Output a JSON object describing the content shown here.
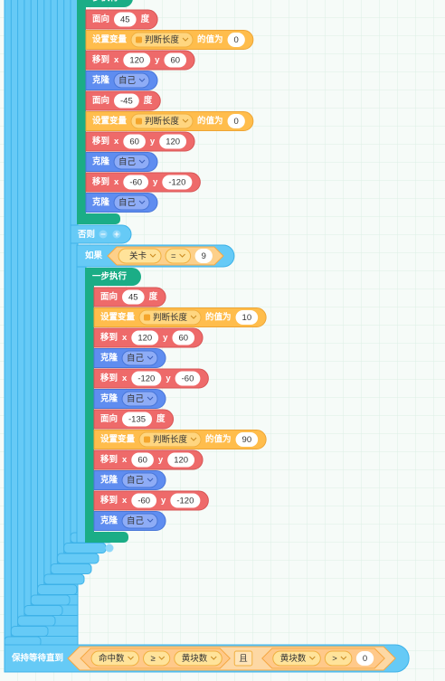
{
  "script": {
    "stack1": {
      "header": "一步执行",
      "blocks": [
        {
          "kind": "motion",
          "parts": [
            "面向",
            45,
            "度"
          ]
        },
        {
          "kind": "variable",
          "parts": [
            "设置变量",
            {
              "var": "判断长度"
            },
            "的值为",
            0
          ]
        },
        {
          "kind": "motion",
          "parts": [
            "移到",
            "x",
            120,
            "y",
            60
          ]
        },
        {
          "kind": "control",
          "parts": [
            "克隆",
            {
              "menu": "自己"
            }
          ]
        },
        {
          "kind": "motion",
          "parts": [
            "面向",
            -45,
            "度"
          ]
        },
        {
          "kind": "variable",
          "parts": [
            "设置变量",
            {
              "var": "判断长度"
            },
            "的值为",
            0
          ]
        },
        {
          "kind": "motion",
          "parts": [
            "移到",
            "x",
            60,
            "y",
            120
          ]
        },
        {
          "kind": "control",
          "parts": [
            "克隆",
            {
              "menu": "自己"
            }
          ]
        },
        {
          "kind": "motion",
          "parts": [
            "移到",
            "x",
            -60,
            "y",
            -120
          ]
        },
        {
          "kind": "control",
          "parts": [
            "克隆",
            {
              "menu": "自己"
            }
          ]
        }
      ]
    },
    "else_label": "否则",
    "if_block": {
      "label": "如果",
      "condition": {
        "left": "关卡",
        "op": "=",
        "right": 9
      }
    },
    "stack2": {
      "header": "一步执行",
      "blocks": [
        {
          "kind": "motion",
          "parts": [
            "面向",
            45,
            "度"
          ]
        },
        {
          "kind": "variable",
          "parts": [
            "设置变量",
            {
              "var": "判断长度"
            },
            "的值为",
            10
          ]
        },
        {
          "kind": "motion",
          "parts": [
            "移到",
            "x",
            120,
            "y",
            60
          ]
        },
        {
          "kind": "control",
          "parts": [
            "克隆",
            {
              "menu": "自己"
            }
          ]
        },
        {
          "kind": "motion",
          "parts": [
            "移到",
            "x",
            -120,
            "y",
            -60
          ]
        },
        {
          "kind": "control",
          "parts": [
            "克隆",
            {
              "menu": "自己"
            }
          ]
        },
        {
          "kind": "motion",
          "parts": [
            "面向",
            -135,
            "度"
          ]
        },
        {
          "kind": "variable",
          "parts": [
            "设置变量",
            {
              "var": "判断长度"
            },
            "的值为",
            90
          ]
        },
        {
          "kind": "motion",
          "parts": [
            "移到",
            "x",
            60,
            "y",
            120
          ]
        },
        {
          "kind": "control",
          "parts": [
            "克隆",
            {
              "menu": "自己"
            }
          ]
        },
        {
          "kind": "motion",
          "parts": [
            "移到",
            "x",
            -60,
            "y",
            -120
          ]
        },
        {
          "kind": "control",
          "parts": [
            "克隆",
            {
              "menu": "自己"
            }
          ]
        }
      ]
    },
    "wait_block": {
      "label": "保持等待直到",
      "left": {
        "a": "命中数",
        "op": "≥",
        "b": "黄块数"
      },
      "joiner": "且",
      "right": {
        "a": "黄块数",
        "op": ">",
        "b": 0
      }
    }
  }
}
